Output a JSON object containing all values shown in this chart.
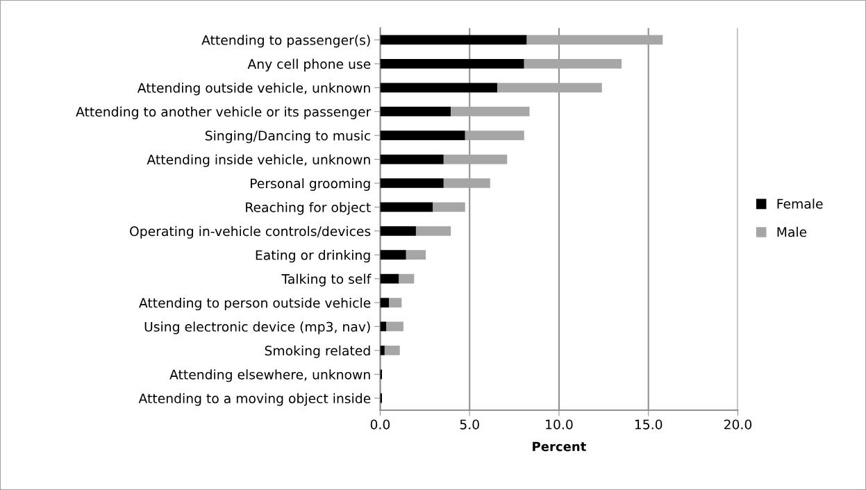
{
  "chart_data": {
    "type": "bar",
    "orientation": "horizontal",
    "stacked": true,
    "xlabel": "Percent",
    "categories": [
      "Attending to passenger(s)",
      "Any cell phone use",
      "Attending outside vehicle, unknown",
      "Attending to another vehicle or its passenger",
      "Singing/Dancing to music",
      "Attending inside vehicle, unknown",
      "Personal grooming",
      "Reaching for object",
      "Operating in-vehicle controls/devices",
      "Eating or drinking",
      "Talking to self",
      "Attending to person outside vehicle",
      "Using electronic device (mp3, nav)",
      "Smoking related",
      "Attending elsewhere, unknown",
      "Attending to a moving object inside"
    ],
    "series": [
      {
        "name": "Female",
        "color": "#000000",
        "values": [
          8.2,
          8.05,
          6.55,
          3.95,
          4.75,
          3.55,
          3.55,
          2.95,
          2.0,
          1.45,
          1.05,
          0.5,
          0.35,
          0.25,
          0.1,
          0.1
        ]
      },
      {
        "name": "Male",
        "color": "#a6a6a6",
        "values": [
          7.6,
          5.45,
          5.85,
          4.4,
          3.3,
          3.55,
          2.6,
          1.8,
          1.95,
          1.1,
          0.85,
          0.7,
          0.95,
          0.85,
          0.0,
          0.0
        ]
      }
    ],
    "xlim": [
      0,
      20
    ],
    "xticks": [
      {
        "value": 0,
        "label": "0.0"
      },
      {
        "value": 5,
        "label": "5.0"
      },
      {
        "value": 10,
        "label": "10.0"
      },
      {
        "value": 15,
        "label": "15.0"
      },
      {
        "value": 20,
        "label": "20.0"
      }
    ],
    "grid": "x",
    "legend": "right"
  }
}
